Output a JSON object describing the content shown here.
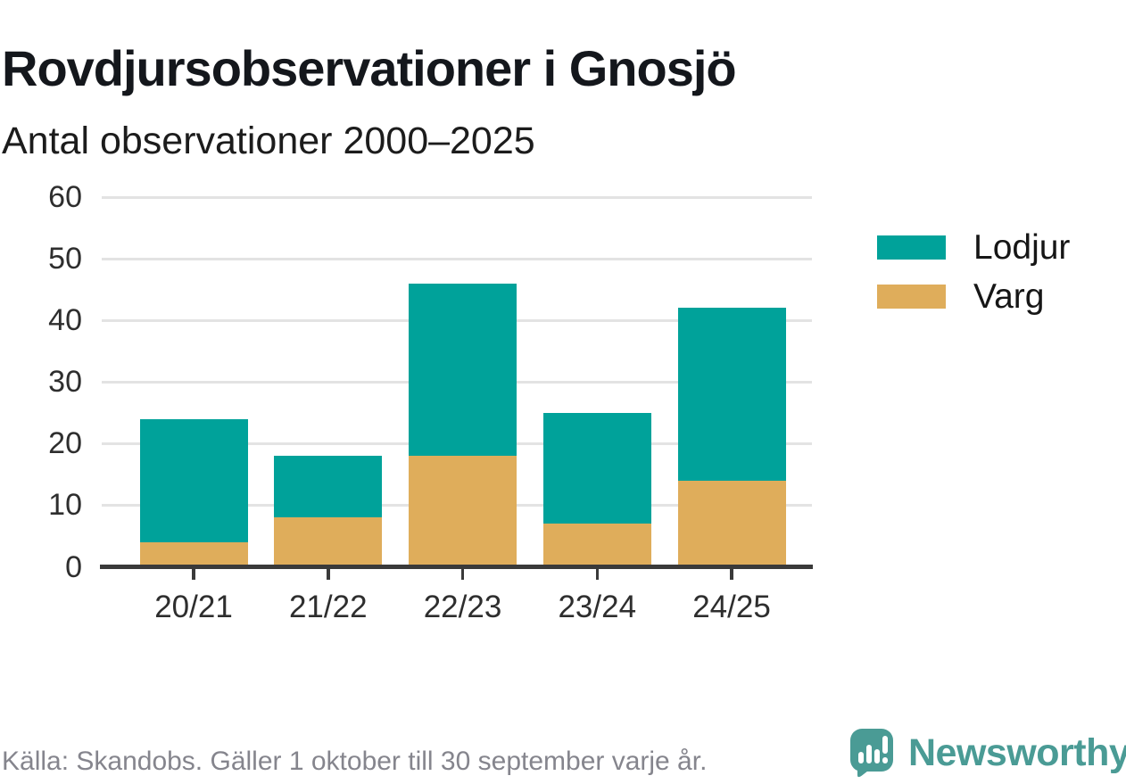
{
  "title": "Rovdjursobservationer i Gnosjö",
  "subtitle": "Antal observationer 2000–2025",
  "footer": {
    "source_text": "Källa: Skandobs. Gäller 1 oktober till 30 september varje år."
  },
  "branding": {
    "logo_text": "Newsworthy",
    "logo_color": "#4a9b95"
  },
  "colors": {
    "lodjur": "#00a29a",
    "varg": "#dfad5b",
    "grid": "#e3e3e3",
    "axis": "#3a3a3a",
    "axis_text": "#2e2e2e",
    "footer_text": "#85858d"
  },
  "legend": [
    {
      "label": "Lodjur",
      "series": "Lodjur"
    },
    {
      "label": "Varg",
      "series": "Varg"
    }
  ],
  "chart_data": {
    "type": "bar",
    "stacked": true,
    "title": "Rovdjursobservationer i Gnosjö",
    "subtitle": "Antal observationer 2000–2025",
    "xlabel": "",
    "ylabel": "",
    "categories": [
      "20/21",
      "21/22",
      "22/23",
      "23/24",
      "24/25"
    ],
    "series": [
      {
        "name": "Varg",
        "color": "#dfad5b",
        "values": [
          4,
          8,
          18,
          7,
          14
        ]
      },
      {
        "name": "Lodjur",
        "color": "#00a29a",
        "values": [
          20,
          10,
          28,
          18,
          28
        ]
      }
    ],
    "stack_totals": [
      24,
      18,
      46,
      25,
      42
    ],
    "ylim": [
      0,
      60
    ],
    "yticks": [
      0,
      10,
      20,
      30,
      40,
      50,
      60
    ],
    "grid": true,
    "legend_position": "right",
    "legend_order": [
      "Lodjur",
      "Varg"
    ]
  }
}
